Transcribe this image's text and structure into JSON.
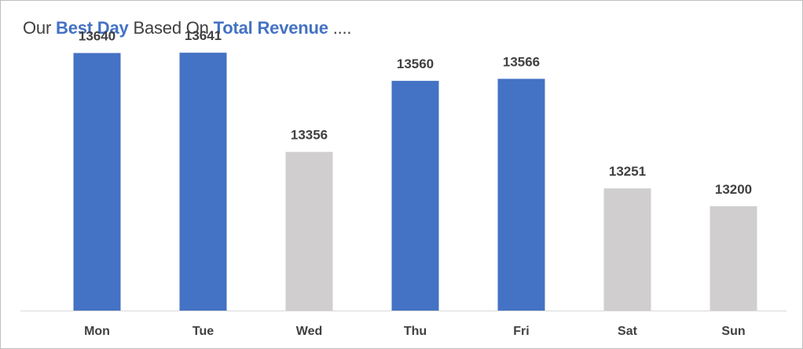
{
  "chart_data": {
    "type": "bar",
    "title_parts": [
      {
        "text": "Our ",
        "highlight": false
      },
      {
        "text": "Best Day",
        "highlight": true
      },
      {
        "text": " Based On ",
        "highlight": false
      },
      {
        "text": "Total Revenue",
        "highlight": true
      },
      {
        "text": " ....",
        "highlight": false
      }
    ],
    "categories": [
      "Mon",
      "Tue",
      "Wed",
      "Thu",
      "Fri",
      "Sat",
      "Sun"
    ],
    "values": [
      13640,
      13641,
      13356,
      13560,
      13566,
      13251,
      13200
    ],
    "highlighted": [
      true,
      true,
      false,
      true,
      true,
      false,
      false
    ],
    "ylim": [
      12900,
      13700
    ],
    "colors": {
      "highlight": "#4472c4",
      "normal": "#d0cece",
      "axis": "#d9d9d9",
      "label": "#404040"
    },
    "grid": false,
    "legend": "none",
    "data_labels": true
  }
}
